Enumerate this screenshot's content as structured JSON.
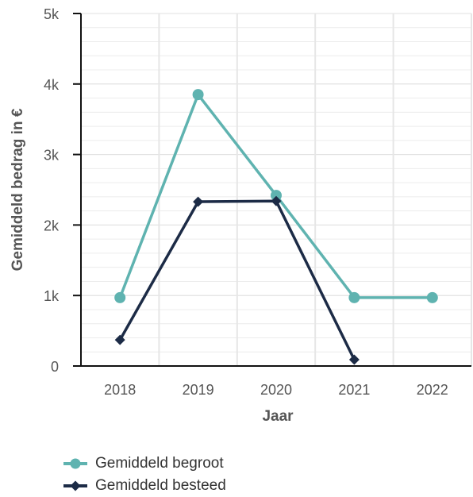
{
  "chart_data": {
    "type": "line",
    "title": "",
    "xlabel": "Jaar",
    "ylabel": "Gemiddeld bedrag in €",
    "categories": [
      "2018",
      "2019",
      "2020",
      "2021",
      "2022"
    ],
    "ylim": [
      0,
      5000
    ],
    "yticks": [
      {
        "value": 0,
        "label": "0"
      },
      {
        "value": 1000,
        "label": "1k"
      },
      {
        "value": 2000,
        "label": "2k"
      },
      {
        "value": 3000,
        "label": "3k"
      },
      {
        "value": 4000,
        "label": "4k"
      },
      {
        "value": 5000,
        "label": "5k"
      }
    ],
    "grid": true,
    "legend_position": "bottom-left",
    "series": [
      {
        "name": "Gemiddeld begroot",
        "color": "#5fb3b0",
        "marker": "circle",
        "values": [
          970,
          3850,
          2420,
          970,
          970
        ]
      },
      {
        "name": "Gemiddeld besteed",
        "color": "#1c2b46",
        "marker": "diamond",
        "values": [
          370,
          2330,
          2340,
          90,
          null
        ]
      }
    ]
  }
}
